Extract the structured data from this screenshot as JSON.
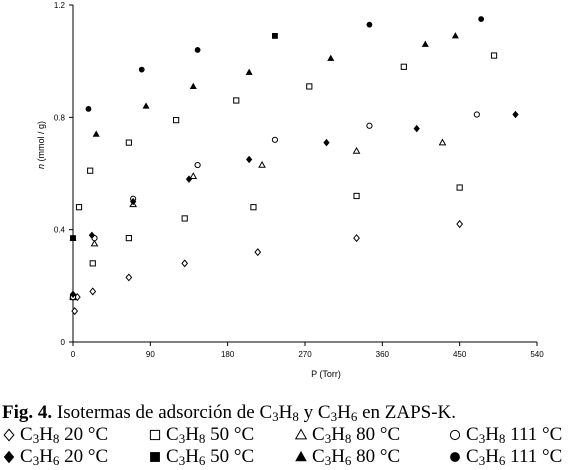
{
  "chart_data": {
    "type": "scatter",
    "xlabel": "P (Torr)",
    "ylabel_italic": "n",
    "ylabel_rest": " (mmol / g)",
    "xlim": [
      0,
      540
    ],
    "ylim": [
      0,
      1.2
    ],
    "xticks": [
      0,
      90,
      180,
      270,
      360,
      450,
      540
    ],
    "yticks": [
      0,
      0.4,
      0.8,
      1.2
    ],
    "grid": false,
    "series": [
      {
        "name": "C3H8 20 °C",
        "marker": "diamond-open",
        "x": [
          0,
          2,
          5,
          23,
          65,
          130,
          215,
          330,
          450
        ],
        "y": [
          0.16,
          0.11,
          0.16,
          0.18,
          0.23,
          0.28,
          0.32,
          0.37,
          0.42
        ]
      },
      {
        "name": "C3H8 50 °C",
        "marker": "square-open",
        "x": [
          0,
          7,
          20,
          23,
          65,
          130,
          210,
          330,
          450
        ],
        "y": [
          0.16,
          0.48,
          0.61,
          0.28,
          0.37,
          0.44,
          0.48,
          0.52,
          0.55
        ],
        "x2": [
          65,
          120,
          190,
          275,
          385,
          490
        ],
        "y2": [
          0.71,
          0.79,
          0.86,
          0.91,
          0.98,
          1.02
        ]
      },
      {
        "name": "C3H8 80 °C",
        "marker": "triangle-open",
        "x": [
          0,
          25,
          70,
          140,
          220,
          330,
          430
        ],
        "y": [
          0.16,
          0.35,
          0.49,
          0.59,
          0.63,
          0.68,
          0.71
        ]
      },
      {
        "name": "C3H8 111 °C",
        "marker": "circle-open",
        "x": [
          0,
          25,
          70,
          145,
          235,
          345,
          470
        ],
        "y": [
          0.16,
          0.37,
          0.51,
          0.63,
          0.72,
          0.77,
          0.81
        ]
      },
      {
        "name": "C3H6 20 °C",
        "marker": "diamond-filled",
        "x": [
          0,
          22,
          70,
          135,
          205,
          295,
          400,
          515
        ],
        "y": [
          0.17,
          0.38,
          0.5,
          0.58,
          0.65,
          0.71,
          0.76,
          0.81
        ]
      },
      {
        "name": "C3H6 50 °C",
        "marker": "square-filled",
        "x": [
          0,
          235
        ],
        "y": [
          0.37,
          1.09
        ]
      },
      {
        "name": "C3H6 80 °C",
        "marker": "triangle-filled",
        "x": [
          0,
          27,
          85,
          140,
          205,
          300,
          410,
          445
        ],
        "y": [
          0.37,
          0.74,
          0.84,
          0.91,
          0.96,
          1.01,
          1.06,
          1.09
        ]
      },
      {
        "name": "C3H6 111 °C",
        "marker": "circle-filled",
        "x": [
          0,
          18,
          80,
          145,
          345,
          475
        ],
        "y": [
          0.37,
          0.83,
          0.97,
          1.04,
          1.13,
          1.15
        ]
      }
    ]
  },
  "caption": {
    "fig_label": "Fig. 4.",
    "text_a": " Isotermas de adsorción de C",
    "sub_a1": "3",
    "text_b": "H",
    "sub_a2": "8",
    "text_c": " y C",
    "sub_b1": "3",
    "text_d": "H",
    "sub_b2": "6",
    "text_e": " en ZAPS-K."
  },
  "legend": [
    {
      "marker": "diamond-open",
      "pre": "C",
      "s1": "3",
      "mid": "H",
      "s2": "8",
      "temp": " 20 °C"
    },
    {
      "marker": "square-open",
      "pre": "C",
      "s1": "3",
      "mid": "H",
      "s2": "8",
      "temp": " 50 °C"
    },
    {
      "marker": "triangle-open",
      "pre": "C",
      "s1": "3",
      "mid": "H",
      "s2": "8",
      "temp": " 80 °C"
    },
    {
      "marker": "circle-open",
      "pre": "C",
      "s1": "3",
      "mid": "H",
      "s2": "8",
      "temp": " 111 °C"
    },
    {
      "marker": "diamond-filled",
      "pre": "C",
      "s1": "3",
      "mid": "H",
      "s2": "6",
      "temp": " 20 °C"
    },
    {
      "marker": "square-filled",
      "pre": "C",
      "s1": "3",
      "mid": "H",
      "s2": "6",
      "temp": " 50 °C"
    },
    {
      "marker": "triangle-filled",
      "pre": "C",
      "s1": "3",
      "mid": "H",
      "s2": "6",
      "temp": " 80 °C"
    },
    {
      "marker": "circle-filled",
      "pre": "C",
      "s1": "3",
      "mid": "H",
      "s2": "6",
      "temp": " 111 °C"
    }
  ]
}
